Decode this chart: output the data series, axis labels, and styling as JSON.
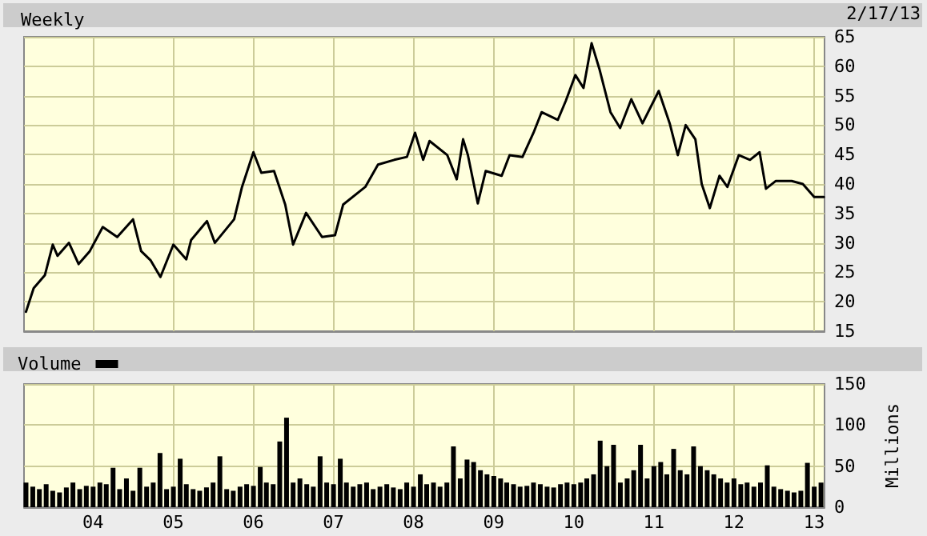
{
  "chart_data": [
    {
      "type": "line",
      "title": "Weekly",
      "annotations": [
        "2/17/13"
      ],
      "color": "#000000",
      "x": [
        "2003-03-01",
        "2003-04-05",
        "2003-05-26",
        "2003-07-01",
        "2003-07-23",
        "2003-09-13",
        "2003-10-27",
        "2003-12-17",
        "2004-02-14",
        "2004-04-20",
        "2004-07-01",
        "2004-08-07",
        "2004-09-20",
        "2004-11-03",
        "2005-01-01",
        "2005-03-01",
        "2005-03-23",
        "2005-06-03",
        "2005-07-09",
        "2005-10-05",
        "2005-11-10",
        "2006-01-01",
        "2006-02-06",
        "2006-04-05",
        "2006-05-26",
        "2006-07-01",
        "2006-08-29",
        "2006-11-10",
        "2007-01-08",
        "2007-02-14",
        "2007-05-26",
        "2007-07-23",
        "2007-10-05",
        "2007-12-02",
        "2008-01-08",
        "2008-02-14",
        "2008-03-14",
        "2008-06-03",
        "2008-07-16",
        "2008-08-14",
        "2008-09-05",
        "2008-10-20",
        "2008-11-25",
        "2009-02-06",
        "2009-03-14",
        "2009-05-12",
        "2009-07-01",
        "2009-08-07",
        "2009-10-20",
        "2009-11-25",
        "2010-01-08",
        "2010-02-14",
        "2010-03-23",
        "2010-04-27",
        "2010-06-17",
        "2010-07-31",
        "2010-09-20",
        "2010-11-10",
        "2011-01-23",
        "2011-03-14",
        "2011-04-20",
        "2011-05-26",
        "2011-07-09",
        "2011-08-07",
        "2011-09-13",
        "2011-10-27",
        "2011-12-02",
        "2012-01-23",
        "2012-03-14",
        "2012-04-27",
        "2012-05-26",
        "2012-07-09",
        "2012-09-20",
        "2012-11-10",
        "2013-01-01",
        "2013-02-14"
      ],
      "values": [
        18.3,
        22.3,
        24.5,
        29.7,
        27.8,
        30,
        26.4,
        28.6,
        32.7,
        31,
        34,
        28.6,
        27,
        24.2,
        29.7,
        27.2,
        30.5,
        33.7,
        30,
        34,
        39.5,
        45.4,
        41.9,
        42.2,
        36.5,
        29.7,
        35.1,
        31,
        31.3,
        36.5,
        39.5,
        43.3,
        44.1,
        44.6,
        48.7,
        44.1,
        47.3,
        44.9,
        40.8,
        47.6,
        44.9,
        36.7,
        42.2,
        41.4,
        44.9,
        44.6,
        48.7,
        52.2,
        50.9,
        54.1,
        58.5,
        56.3,
        63.9,
        59.6,
        52.2,
        49.5,
        54.4,
        50.3,
        55.8,
        50.3,
        44.9,
        50,
        47.6,
        40,
        35.9,
        41.4,
        39.5,
        44.9,
        44.1,
        45.4,
        39.2,
        40.5,
        40.5,
        40,
        37.8,
        37.8
      ],
      "xlim": [
        "2003-02-20",
        "2013-02-17"
      ],
      "xticks": [
        {
          "value": "2004-01-01",
          "label": null
        },
        {
          "value": "2005-01-01",
          "label": null
        },
        {
          "value": "2006-01-01",
          "label": null
        },
        {
          "value": "2007-01-01",
          "label": null
        },
        {
          "value": "2008-01-01",
          "label": null
        },
        {
          "value": "2009-01-01",
          "label": null
        },
        {
          "value": "2010-01-01",
          "label": null
        },
        {
          "value": "2011-01-01",
          "label": null
        },
        {
          "value": "2012-01-01",
          "label": null
        },
        {
          "value": "2013-01-01",
          "label": null
        }
      ],
      "ylim": [
        15,
        65
      ],
      "yticks": [
        15,
        20,
        25,
        30,
        35,
        40,
        45,
        50,
        55,
        60,
        65
      ],
      "grid": true,
      "tick_labels": "y"
    },
    {
      "type": "bar",
      "ylabel": "Millions",
      "legend": "top left",
      "series": [
        {
          "name": "Volume",
          "color": "#000000",
          "x": [
            "2003-03",
            "2003-04",
            "2003-05",
            "2003-06",
            "2003-07",
            "2003-08",
            "2003-09",
            "2003-10",
            "2003-11",
            "2003-12",
            "2004-01",
            "2004-02",
            "2004-03",
            "2004-04",
            "2004-05",
            "2004-06",
            "2004-07",
            "2004-08",
            "2004-09",
            "2004-10",
            "2004-11",
            "2004-12",
            "2005-01",
            "2005-02",
            "2005-03",
            "2005-04",
            "2005-05",
            "2005-06",
            "2005-07",
            "2005-08",
            "2005-09",
            "2005-10",
            "2005-11",
            "2005-12",
            "2006-01",
            "2006-02",
            "2006-03",
            "2006-04",
            "2006-05",
            "2006-06",
            "2006-07",
            "2006-08",
            "2006-09",
            "2006-10",
            "2006-11",
            "2006-12",
            "2007-01",
            "2007-02",
            "2007-03",
            "2007-04",
            "2007-05",
            "2007-06",
            "2007-07",
            "2007-08",
            "2007-09",
            "2007-10",
            "2007-11",
            "2007-12",
            "2008-01",
            "2008-02",
            "2008-03",
            "2008-04",
            "2008-05",
            "2008-06",
            "2008-07",
            "2008-08",
            "2008-09",
            "2008-10",
            "2008-11",
            "2008-12",
            "2009-01",
            "2009-02",
            "2009-03",
            "2009-04",
            "2009-05",
            "2009-06",
            "2009-07",
            "2009-08",
            "2009-09",
            "2009-10",
            "2009-11",
            "2009-12",
            "2010-01",
            "2010-02",
            "2010-03",
            "2010-04",
            "2010-05",
            "2010-06",
            "2010-07",
            "2010-08",
            "2010-09",
            "2010-10",
            "2010-11",
            "2010-12",
            "2011-01",
            "2011-02",
            "2011-03",
            "2011-04",
            "2011-05",
            "2011-06",
            "2011-07",
            "2011-08",
            "2011-09",
            "2011-10",
            "2011-11",
            "2011-12",
            "2012-01",
            "2012-02",
            "2012-03",
            "2012-04",
            "2012-05",
            "2012-06",
            "2012-07",
            "2012-08",
            "2012-09",
            "2012-10",
            "2012-11",
            "2012-12",
            "2013-01",
            "2013-02"
          ],
          "values": [
            30,
            25,
            22,
            28,
            20,
            18,
            24,
            30,
            22,
            26,
            25,
            30,
            28,
            48,
            22,
            35,
            20,
            48,
            25,
            30,
            66,
            22,
            25,
            59,
            28,
            22,
            20,
            24,
            30,
            62,
            22,
            20,
            25,
            28,
            26,
            49,
            30,
            28,
            80,
            109,
            30,
            35,
            28,
            25,
            62,
            30,
            28,
            59,
            30,
            25,
            28,
            30,
            22,
            25,
            28,
            24,
            22,
            30,
            25,
            40,
            28,
            30,
            25,
            30,
            74,
            35,
            58,
            55,
            45,
            40,
            38,
            35,
            30,
            28,
            25,
            26,
            30,
            28,
            25,
            24,
            28,
            30,
            28,
            30,
            35,
            40,
            81,
            50,
            76,
            30,
            35,
            45,
            76,
            35,
            50,
            55,
            40,
            71,
            45,
            40,
            74,
            50,
            45,
            40,
            35,
            30,
            35,
            28,
            30,
            25,
            30,
            51,
            25,
            22,
            20,
            18,
            20,
            54,
            25,
            30
          ]
        }
      ],
      "xlim": [
        "2003-02-20",
        "2013-02-17"
      ],
      "xticks": [
        {
          "value": "2004-01-01",
          "label": "04"
        },
        {
          "value": "2005-01-01",
          "label": "05"
        },
        {
          "value": "2006-01-01",
          "label": "06"
        },
        {
          "value": "2007-01-01",
          "label": "07"
        },
        {
          "value": "2008-01-01",
          "label": "08"
        },
        {
          "value": "2009-01-01",
          "label": "09"
        },
        {
          "value": "2010-01-01",
          "label": "10"
        },
        {
          "value": "2011-01-01",
          "label": "11"
        },
        {
          "value": "2012-01-01",
          "label": "12"
        },
        {
          "value": "2013-01-01",
          "label": "13"
        }
      ],
      "ylim": [
        0,
        150
      ],
      "yticks": [
        0,
        50,
        100,
        150
      ],
      "grid": true
    }
  ]
}
